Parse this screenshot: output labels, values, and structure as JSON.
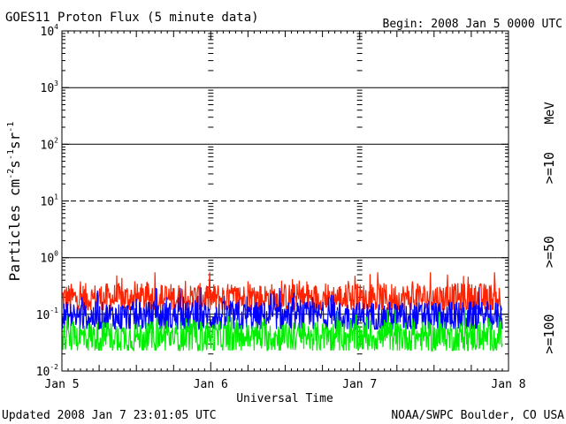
{
  "chart_data": {
    "type": "line",
    "title": "GOES11 Proton Flux (5 minute data)",
    "begin_label": "Begin: 2008 Jan 5 0000 UTC",
    "xlabel": "Universal Time",
    "ylabel": "Particles cm-2 s-1 sr-1",
    "ylabel_parts": {
      "main": "Particles cm",
      "e1": "-2",
      "s": "s",
      "e2": "-1",
      "sr": "sr",
      "e3": "-1"
    },
    "updated_label": "Updated 2008 Jan  7 23:01:05 UTC",
    "credit_label": "NOAA/SWPC Boulder, CO USA",
    "unit_label": "MeV",
    "yscale": "log",
    "ylim": [
      0.01,
      10000
    ],
    "xlim": [
      "2008-01-05T00:00",
      "2008-01-08T00:00"
    ],
    "x_ticks": [
      "Jan 5",
      "Jan 6",
      "Jan 7",
      "Jan 8"
    ],
    "y_ticks": [
      {
        "base": "10",
        "exp": "-2"
      },
      {
        "base": "10",
        "exp": "-1"
      },
      {
        "base": "10",
        "exp": "0"
      },
      {
        "base": "10",
        "exp": "1"
      },
      {
        "base": "10",
        "exp": "2"
      },
      {
        "base": "10",
        "exp": "3"
      },
      {
        "base": "10",
        "exp": "4"
      }
    ],
    "data_end": "2008-01-07T23:00",
    "series": [
      {
        "name": ">=10",
        "color": "#ff2200",
        "typical": 0.19,
        "min": 0.12,
        "max": 0.55
      },
      {
        "name": ">=50",
        "color": "#0000ff",
        "typical": 0.09,
        "min": 0.055,
        "max": 0.3
      },
      {
        "name": ">=100",
        "color": "#00ee00",
        "typical": 0.04,
        "min": 0.023,
        "max": 0.12
      }
    ]
  }
}
